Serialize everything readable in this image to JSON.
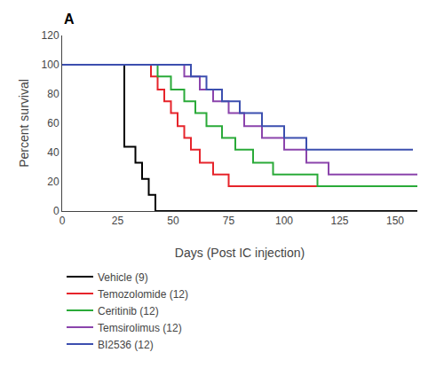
{
  "chart_data": {
    "type": "line",
    "annotations": [
      "A"
    ],
    "xlabel": "Days (Post IC injection)",
    "ylabel": "Percent survival",
    "xlim": [
      0,
      160
    ],
    "ylim": [
      0,
      120
    ],
    "xticks": [
      0,
      25,
      50,
      75,
      100,
      125,
      150
    ],
    "yticks": [
      0,
      20,
      40,
      60,
      80,
      100,
      120
    ],
    "grid": false,
    "legend": "bottom",
    "series": [
      {
        "name": "Vehicle (9)",
        "color": "#000000",
        "x": [
          0,
          28,
          28,
          33,
          33,
          36,
          36,
          39,
          39,
          42,
          42,
          160
        ],
        "values": [
          100,
          100,
          44,
          44,
          33,
          33,
          22,
          22,
          11,
          11,
          0,
          0
        ]
      },
      {
        "name": "Temozolomide (12)",
        "color": "#e6242b",
        "x": [
          0,
          40,
          40,
          43,
          43,
          46,
          46,
          49,
          49,
          52,
          52,
          55,
          55,
          58,
          58,
          62,
          62,
          68,
          68,
          75,
          75,
          160
        ],
        "values": [
          100,
          100,
          92,
          92,
          83,
          83,
          75,
          75,
          67,
          67,
          58,
          58,
          50,
          50,
          42,
          42,
          33,
          33,
          25,
          25,
          17,
          17
        ]
      },
      {
        "name": "Ceritinib (12)",
        "color": "#2aaa39",
        "x": [
          0,
          43,
          43,
          49,
          49,
          55,
          55,
          60,
          60,
          65,
          65,
          72,
          72,
          78,
          78,
          86,
          86,
          95,
          95,
          115,
          115,
          160
        ],
        "values": [
          100,
          100,
          92,
          92,
          83,
          83,
          75,
          75,
          67,
          67,
          58,
          58,
          50,
          50,
          42,
          42,
          33,
          33,
          25,
          25,
          17,
          17
        ]
      },
      {
        "name": "Temsirolimus (12)",
        "color": "#8b44ac",
        "x": [
          0,
          55,
          55,
          62,
          62,
          68,
          68,
          75,
          75,
          82,
          82,
          90,
          90,
          100,
          100,
          110,
          110,
          120,
          120,
          160
        ],
        "values": [
          100,
          100,
          92,
          92,
          83,
          83,
          75,
          75,
          67,
          67,
          58,
          58,
          50,
          50,
          42,
          42,
          33,
          33,
          25,
          25
        ]
      },
      {
        "name": "BI2536 (12)",
        "color": "#3c4faf",
        "x": [
          0,
          58,
          58,
          65,
          65,
          72,
          72,
          80,
          80,
          90,
          90,
          100,
          100,
          110,
          110,
          158
        ],
        "values": [
          100,
          100,
          92,
          92,
          83,
          83,
          75,
          75,
          67,
          67,
          58,
          58,
          50,
          50,
          42,
          42
        ]
      }
    ]
  }
}
